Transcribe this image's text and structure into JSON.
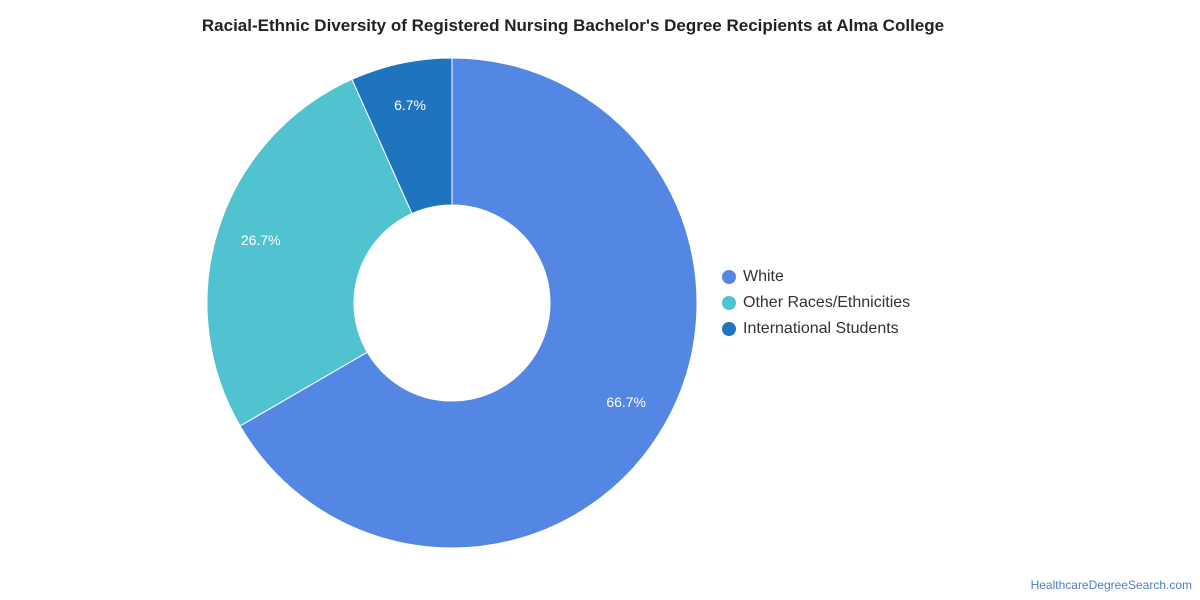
{
  "chart_data": {
    "type": "pie",
    "title": "Racial-Ethnic Diversity of Registered Nursing Bachelor's Degree Recipients at Alma College",
    "donut": true,
    "legend_position": "right",
    "slices": [
      {
        "name": "White",
        "value": 66.7,
        "label": "66.7%",
        "color": "#5486e4"
      },
      {
        "name": "Other Races/Ethnicities",
        "value": 26.7,
        "label": "26.7%",
        "color": "#51c2cf"
      },
      {
        "name": "International Students",
        "value": 6.7,
        "label": "6.7%",
        "color": "#1f74be"
      }
    ]
  },
  "watermark": "HealthcareDegreeSearch.com"
}
